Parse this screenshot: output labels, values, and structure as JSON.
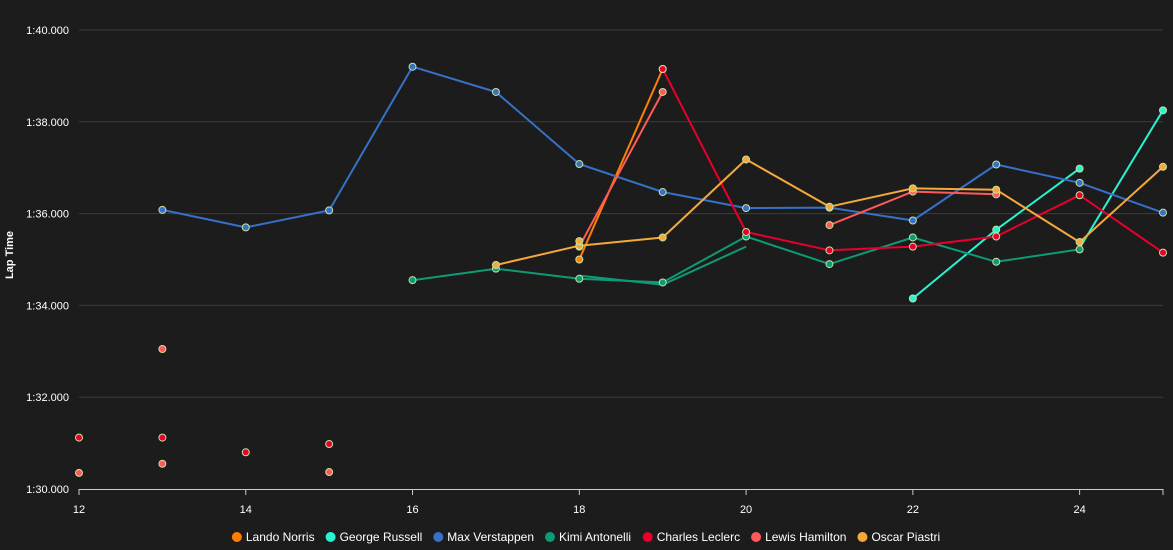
{
  "chart_data": {
    "type": "line",
    "title": "",
    "xlabel": "",
    "ylabel": "Lap Time",
    "xlim": [
      12,
      25
    ],
    "ylim": [
      90.0,
      100.0
    ],
    "x_ticks": [
      12,
      14,
      16,
      18,
      20,
      22,
      24
    ],
    "y_ticks": [
      90,
      92,
      94,
      96,
      98,
      100
    ],
    "y_tick_labels": [
      "1:30.000",
      "1:32.000",
      "1:34.000",
      "1:36.000",
      "1:38.000",
      "1:40.000"
    ],
    "grid": "horizontal",
    "legend_position": "bottom",
    "series": [
      {
        "name": "Lando Norris",
        "color": "#ff8000",
        "points": [
          [
            18,
            95.0
          ],
          [
            19,
            99.15
          ]
        ],
        "segments": [
          [
            [
              18,
              95.0
            ],
            [
              19,
              99.15
            ]
          ]
        ]
      },
      {
        "name": "George Russell",
        "color": "#27f4d2",
        "points": [
          [
            22,
            94.15
          ],
          [
            23,
            95.65
          ],
          [
            24,
            96.98
          ],
          [
            25,
            98.25
          ]
        ],
        "segments": [
          [
            [
              22,
              94.15
            ],
            [
              23,
              95.65
            ],
            [
              24,
              96.98
            ]
          ],
          [
            [
              24,
              95.25
            ],
            [
              25,
              98.25
            ]
          ]
        ]
      },
      {
        "name": "Max Verstappen",
        "color": "#3671c6",
        "points": [
          [
            13,
            96.08
          ],
          [
            14,
            95.7
          ],
          [
            15,
            96.07
          ],
          [
            16,
            99.2
          ],
          [
            17,
            98.65
          ],
          [
            18,
            97.08
          ],
          [
            19,
            96.47
          ],
          [
            20,
            96.12
          ],
          [
            21,
            96.13
          ],
          [
            22,
            95.85
          ],
          [
            23,
            97.07
          ],
          [
            24,
            96.67
          ],
          [
            25,
            96.02
          ]
        ],
        "segments": [
          [
            [
              13,
              96.08
            ],
            [
              14,
              95.7
            ],
            [
              15,
              96.07
            ],
            [
              16,
              99.2
            ],
            [
              17,
              98.65
            ],
            [
              18,
              97.08
            ],
            [
              19,
              96.47
            ],
            [
              20,
              96.12
            ],
            [
              21,
              96.13
            ],
            [
              22,
              95.85
            ],
            [
              23,
              97.07
            ],
            [
              24,
              96.67
            ],
            [
              25,
              96.02
            ]
          ]
        ]
      },
      {
        "name": "Kimi Antonelli",
        "color": "#0f9a76",
        "points": [
          [
            16,
            94.55
          ],
          [
            17,
            94.8
          ],
          [
            18,
            94.58
          ],
          [
            19,
            94.5
          ],
          [
            20,
            95.5
          ],
          [
            21,
            94.9
          ],
          [
            22,
            95.48
          ],
          [
            23,
            94.95
          ],
          [
            24,
            95.22
          ]
        ],
        "segments": [
          [
            [
              16,
              94.55
            ],
            [
              17,
              94.8
            ],
            [
              18,
              94.58
            ],
            [
              19,
              94.5
            ],
            [
              20,
              95.5
            ],
            [
              21,
              94.9
            ],
            [
              22,
              95.48
            ],
            [
              23,
              94.95
            ],
            [
              24,
              95.22
            ]
          ],
          [
            [
              18,
              94.65
            ],
            [
              19,
              94.45
            ],
            [
              20,
              95.28
            ]
          ]
        ]
      },
      {
        "name": "Charles Leclerc",
        "color": "#e8002d",
        "points": [
          [
            12,
            91.12
          ],
          [
            13,
            91.12
          ],
          [
            14,
            90.8
          ],
          [
            15,
            90.98
          ],
          [
            19,
            99.15
          ],
          [
            20,
            95.6
          ],
          [
            21,
            95.2
          ],
          [
            22,
            95.28
          ],
          [
            23,
            95.5
          ],
          [
            24,
            96.4
          ],
          [
            25,
            95.15
          ]
        ],
        "segments": [
          [
            [
              19,
              99.15
            ],
            [
              20,
              95.6
            ],
            [
              21,
              95.2
            ],
            [
              22,
              95.28
            ],
            [
              23,
              95.5
            ],
            [
              24,
              96.4
            ],
            [
              25,
              95.15
            ]
          ]
        ]
      },
      {
        "name": "Lewis Hamilton",
        "color": "#ff5a5a",
        "points": [
          [
            12,
            90.35
          ],
          [
            13,
            93.05
          ],
          [
            13,
            90.55
          ],
          [
            15,
            90.37
          ],
          [
            18,
            95.28
          ],
          [
            19,
            98.65
          ],
          [
            21,
            95.75
          ],
          [
            22,
            96.48
          ],
          [
            23,
            96.42
          ]
        ],
        "segments": [
          [
            [
              18,
              95.28
            ],
            [
              19,
              98.65
            ]
          ],
          [
            [
              21,
              95.75
            ],
            [
              22,
              96.48
            ],
            [
              23,
              96.42
            ]
          ]
        ]
      },
      {
        "name": "Oscar Piastri",
        "color": "#f6a93b",
        "points": [
          [
            17,
            94.88
          ],
          [
            18,
            95.3
          ],
          [
            18,
            95.4
          ],
          [
            19,
            95.48
          ],
          [
            20,
            97.18
          ],
          [
            21,
            96.15
          ],
          [
            22,
            96.55
          ],
          [
            23,
            96.52
          ],
          [
            24,
            95.38
          ],
          [
            25,
            97.02
          ]
        ],
        "segments": [
          [
            [
              17,
              94.88
            ],
            [
              18,
              95.3
            ],
            [
              19,
              95.48
            ],
            [
              20,
              97.18
            ],
            [
              21,
              96.15
            ],
            [
              22,
              96.55
            ],
            [
              23,
              96.52
            ],
            [
              24,
              95.38
            ],
            [
              25,
              97.02
            ]
          ]
        ]
      }
    ]
  }
}
